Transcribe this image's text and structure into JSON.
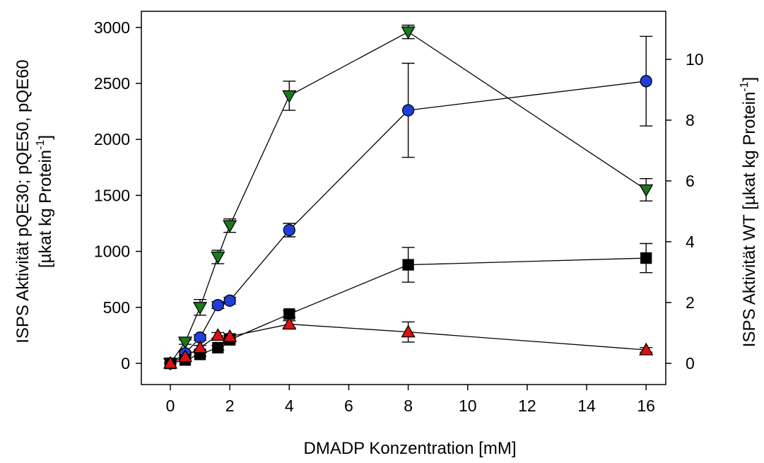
{
  "chart_data": {
    "type": "scatter",
    "xlabel": "DMADP Konzentration [mM]",
    "ylabel_left_line1": "ISPS Aktivität pQE30; pQE50, pQE60",
    "ylabel_left_line2_prefix": "[µkat kg Protein",
    "ylabel_left_line2_sup": "-1",
    "ylabel_left_line2_suffix": "]",
    "ylabel_right_prefix": "ISPS Aktivität WT [µkat kg Protein",
    "ylabel_right_sup": "-1",
    "ylabel_right_suffix": "]",
    "x_breaks": "ticks 0-8 linear, then 8-16 compressed",
    "x_ticks": [
      0,
      2,
      4,
      6,
      8,
      10,
      12,
      14,
      16
    ],
    "y_left_ticks": [
      0,
      500,
      1000,
      1500,
      2000,
      2500,
      3000
    ],
    "y_left_lim": [
      -200,
      3150
    ],
    "y_right_ticks": [
      0,
      2,
      4,
      6,
      8,
      10
    ],
    "y_right_scale": "right axis value 10 corresponds to left axis 2715 (right = left / 271.5)",
    "grid": false,
    "series": [
      {
        "marker": "triangle-down",
        "color": "#1a7a1a",
        "x": [
          0,
          0.5,
          1,
          1.6,
          2,
          4,
          8,
          16
        ],
        "y": [
          0,
          190,
          500,
          950,
          1230,
          2390,
          2960,
          1550
        ],
        "err": [
          0,
          20,
          70,
          60,
          60,
          130,
          60,
          100
        ]
      },
      {
        "marker": "circle",
        "color": "#1f3fdc",
        "x": [
          0,
          0.5,
          1,
          1.6,
          2,
          4,
          8,
          16
        ],
        "y": [
          0,
          90,
          230,
          520,
          560,
          1190,
          2260,
          2520
        ],
        "err": [
          0,
          15,
          25,
          30,
          30,
          60,
          420,
          400
        ]
      },
      {
        "marker": "square",
        "color": "#000000",
        "x": [
          0,
          0.5,
          1,
          1.6,
          2,
          4,
          8,
          16
        ],
        "y": [
          0,
          30,
          80,
          140,
          210,
          440,
          880,
          940
        ],
        "err": [
          0,
          10,
          15,
          20,
          20,
          30,
          155,
          130
        ]
      },
      {
        "marker": "triangle-up",
        "color": "#e01010",
        "x": [
          0,
          0.5,
          1,
          1.6,
          2,
          4,
          8,
          16
        ],
        "y": [
          0,
          60,
          140,
          250,
          240,
          350,
          280,
          120
        ],
        "err": [
          0,
          10,
          20,
          25,
          25,
          30,
          90,
          20
        ]
      }
    ]
  }
}
